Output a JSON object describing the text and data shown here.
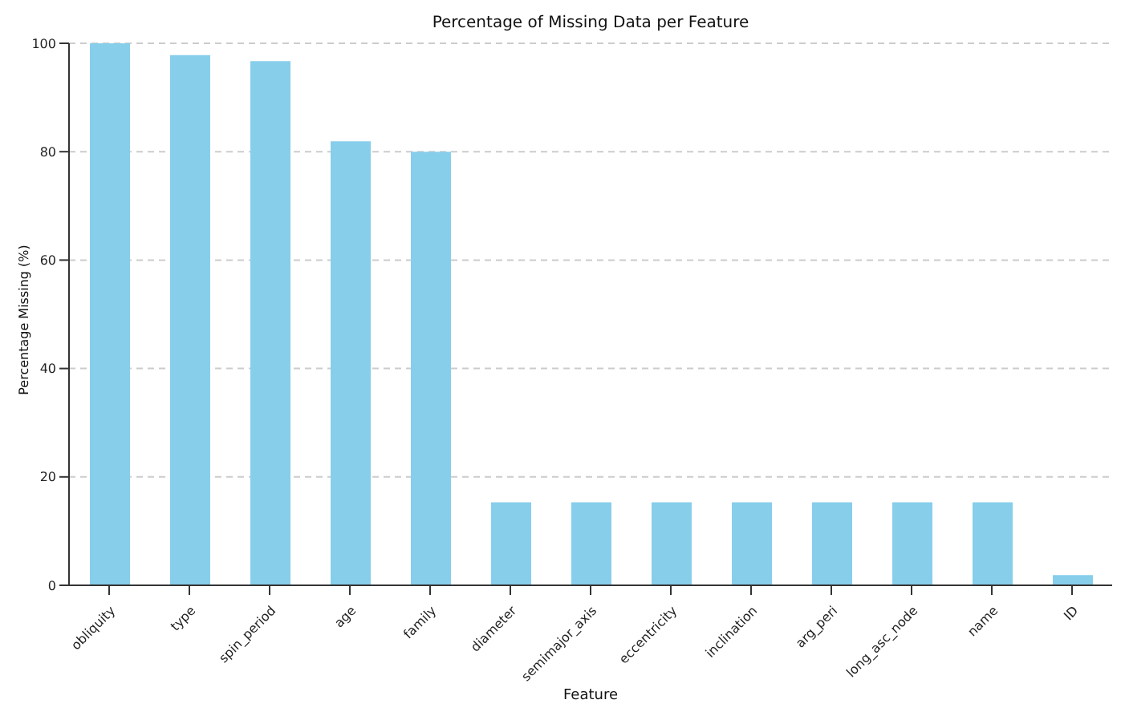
{
  "chart_data": {
    "type": "bar",
    "title": "Percentage of Missing Data per Feature",
    "xlabel": "Feature",
    "ylabel": "Percentage Missing (%)",
    "categories": [
      "obliquity",
      "type",
      "spin_period",
      "age",
      "family",
      "diameter",
      "semimajor_axis",
      "eccentricity",
      "inclination",
      "arg_peri",
      "long_asc_node",
      "name",
      "ID"
    ],
    "values": [
      100,
      97.8,
      96.7,
      81.9,
      80,
      15.3,
      15.3,
      15.3,
      15.3,
      15.3,
      15.3,
      15.3,
      1.9
    ],
    "color": "#87ceeb",
    "ylim": [
      0,
      100
    ],
    "yticks": [
      0,
      20,
      40,
      60,
      80,
      100
    ],
    "grid": "y"
  }
}
